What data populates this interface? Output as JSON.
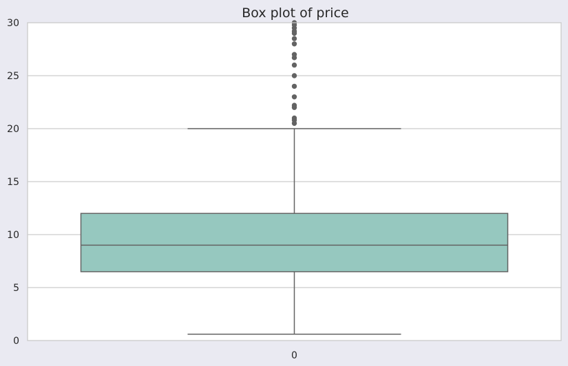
{
  "chart_data": {
    "type": "box",
    "title": "Box plot of price",
    "xlabel": "",
    "ylabel": "",
    "categories": [
      "0"
    ],
    "ylim": [
      0,
      30
    ],
    "yticks": [
      0,
      5,
      10,
      15,
      20,
      25,
      30
    ],
    "grid": true,
    "boxes": [
      {
        "category": "0",
        "whisker_low": 0.6,
        "q1": 6.5,
        "median": 9.0,
        "q3": 12.0,
        "whisker_high": 20.0,
        "outliers": [
          20.5,
          20.8,
          21.0,
          22.0,
          22.2,
          23.0,
          24.0,
          25.0,
          26.0,
          26.7,
          27.0,
          28.0,
          28.5,
          29.0,
          29.2,
          29.5,
          29.8,
          30.0
        ]
      }
    ],
    "colors": {
      "background": "#eaeaf2",
      "plot_area": "#ffffff",
      "grid": "#cccccc",
      "box_fill": "#96c8bf",
      "lines": "#636363",
      "outlier": "#636363",
      "text": "#262626"
    }
  }
}
